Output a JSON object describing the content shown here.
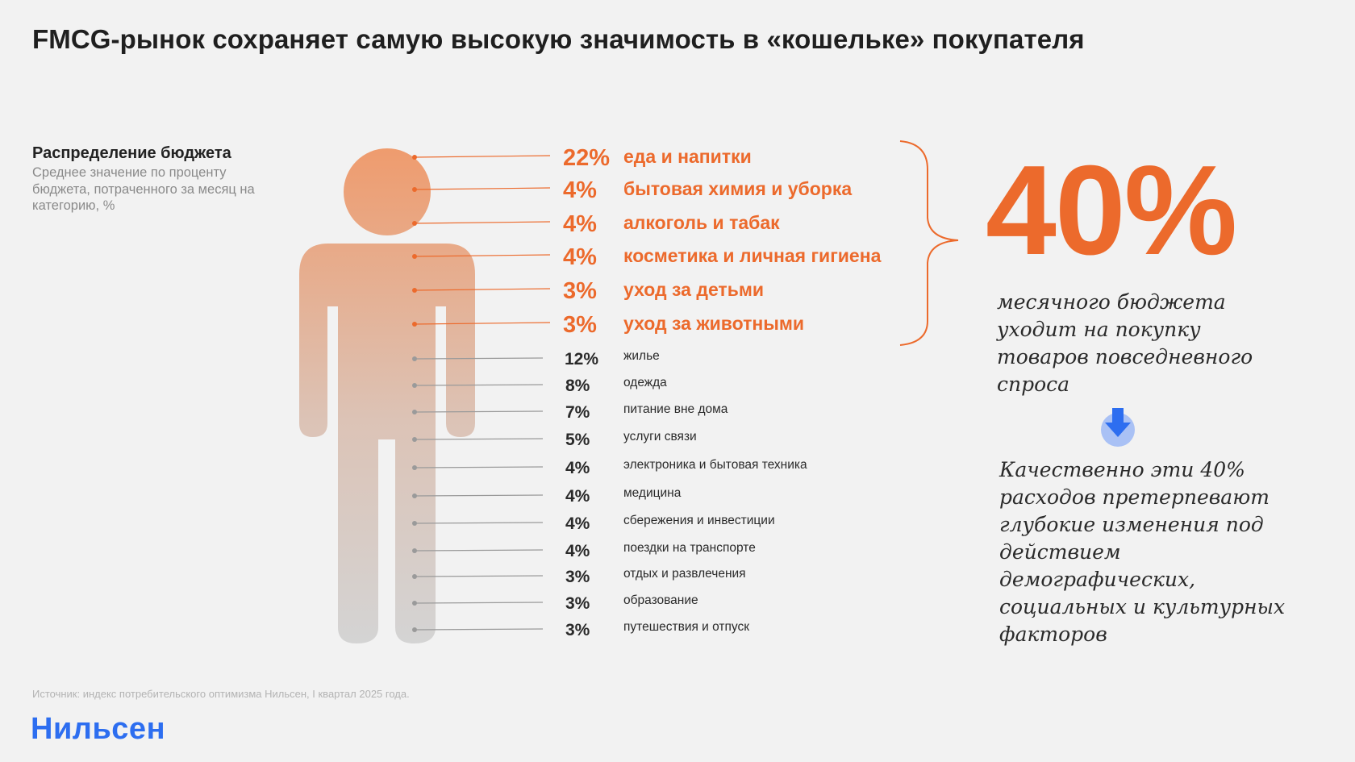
{
  "title": "FMCG-рынок сохраняет самую высокую значимость в «кошельке» покупателя",
  "legend": {
    "title": "Распределение бюджета",
    "subtitle": "Среднее значение по проценту бюджета, потраченного за месяц на категорию, %"
  },
  "colors": {
    "accent": "#ec6a2c",
    "figure_top": "#ef9b6d",
    "figure_bottom": "#d4d4d4",
    "gray_line": "#9a9a9a",
    "arrow": "#2d6ef0",
    "logo": "#2d6ef0"
  },
  "chart_data": {
    "type": "table",
    "title": "Распределение бюджета",
    "subtitle": "Среднее значение по проценту бюджета, потраченного за месяц на категорию, %",
    "unit": "%",
    "categories": [
      {
        "label": "еда и напитки",
        "value": 22,
        "text": "22%",
        "fmcg": true
      },
      {
        "label": "бытовая химия и уборка",
        "value": 4,
        "text": "4%",
        "fmcg": true
      },
      {
        "label": "алкоголь и табак",
        "value": 4,
        "text": "4%",
        "fmcg": true
      },
      {
        "label": "косметика и личная гигиена",
        "value": 4,
        "text": "4%",
        "fmcg": true
      },
      {
        "label": "уход за детьми",
        "value": 3,
        "text": "3%",
        "fmcg": true
      },
      {
        "label": "уход за животными",
        "value": 3,
        "text": "3%",
        "fmcg": true
      },
      {
        "label": "жилье",
        "value": 12,
        "text": "12%",
        "fmcg": false
      },
      {
        "label": "одежда",
        "value": 8,
        "text": "8%",
        "fmcg": false
      },
      {
        "label": "питание вне дома",
        "value": 7,
        "text": "7%",
        "fmcg": false
      },
      {
        "label": "услуги связи",
        "value": 5,
        "text": "5%",
        "fmcg": false
      },
      {
        "label": "электроника и бытовая техника",
        "value": 4,
        "text": "4%",
        "fmcg": false
      },
      {
        "label": "медицина",
        "value": 4,
        "text": "4%",
        "fmcg": false
      },
      {
        "label": "сбережения и инвестиции",
        "value": 4,
        "text": "4%",
        "fmcg": false
      },
      {
        "label": "поездки на транспорте",
        "value": 4,
        "text": "4%",
        "fmcg": false
      },
      {
        "label": "отдых и развлечения",
        "value": 3,
        "text": "3%",
        "fmcg": false
      },
      {
        "label": "образование",
        "value": 3,
        "text": "3%",
        "fmcg": false
      },
      {
        "label": "путешествия и отпуск",
        "value": 3,
        "text": "3%",
        "fmcg": false
      }
    ]
  },
  "highlight": {
    "value": "40%",
    "caption": "месячного бюджета уходит на покупку товаров повседневного спроса",
    "arrow_icon": "arrow-down-icon",
    "note": "Качественно эти 40% расходов претерпевают глубокие изменения под действием демографических, социальных и культурных факторов"
  },
  "source": "Источник: индекс потребительского оптимизма Нильсен, I квартал 2025 года.",
  "logo": "Нильсен"
}
